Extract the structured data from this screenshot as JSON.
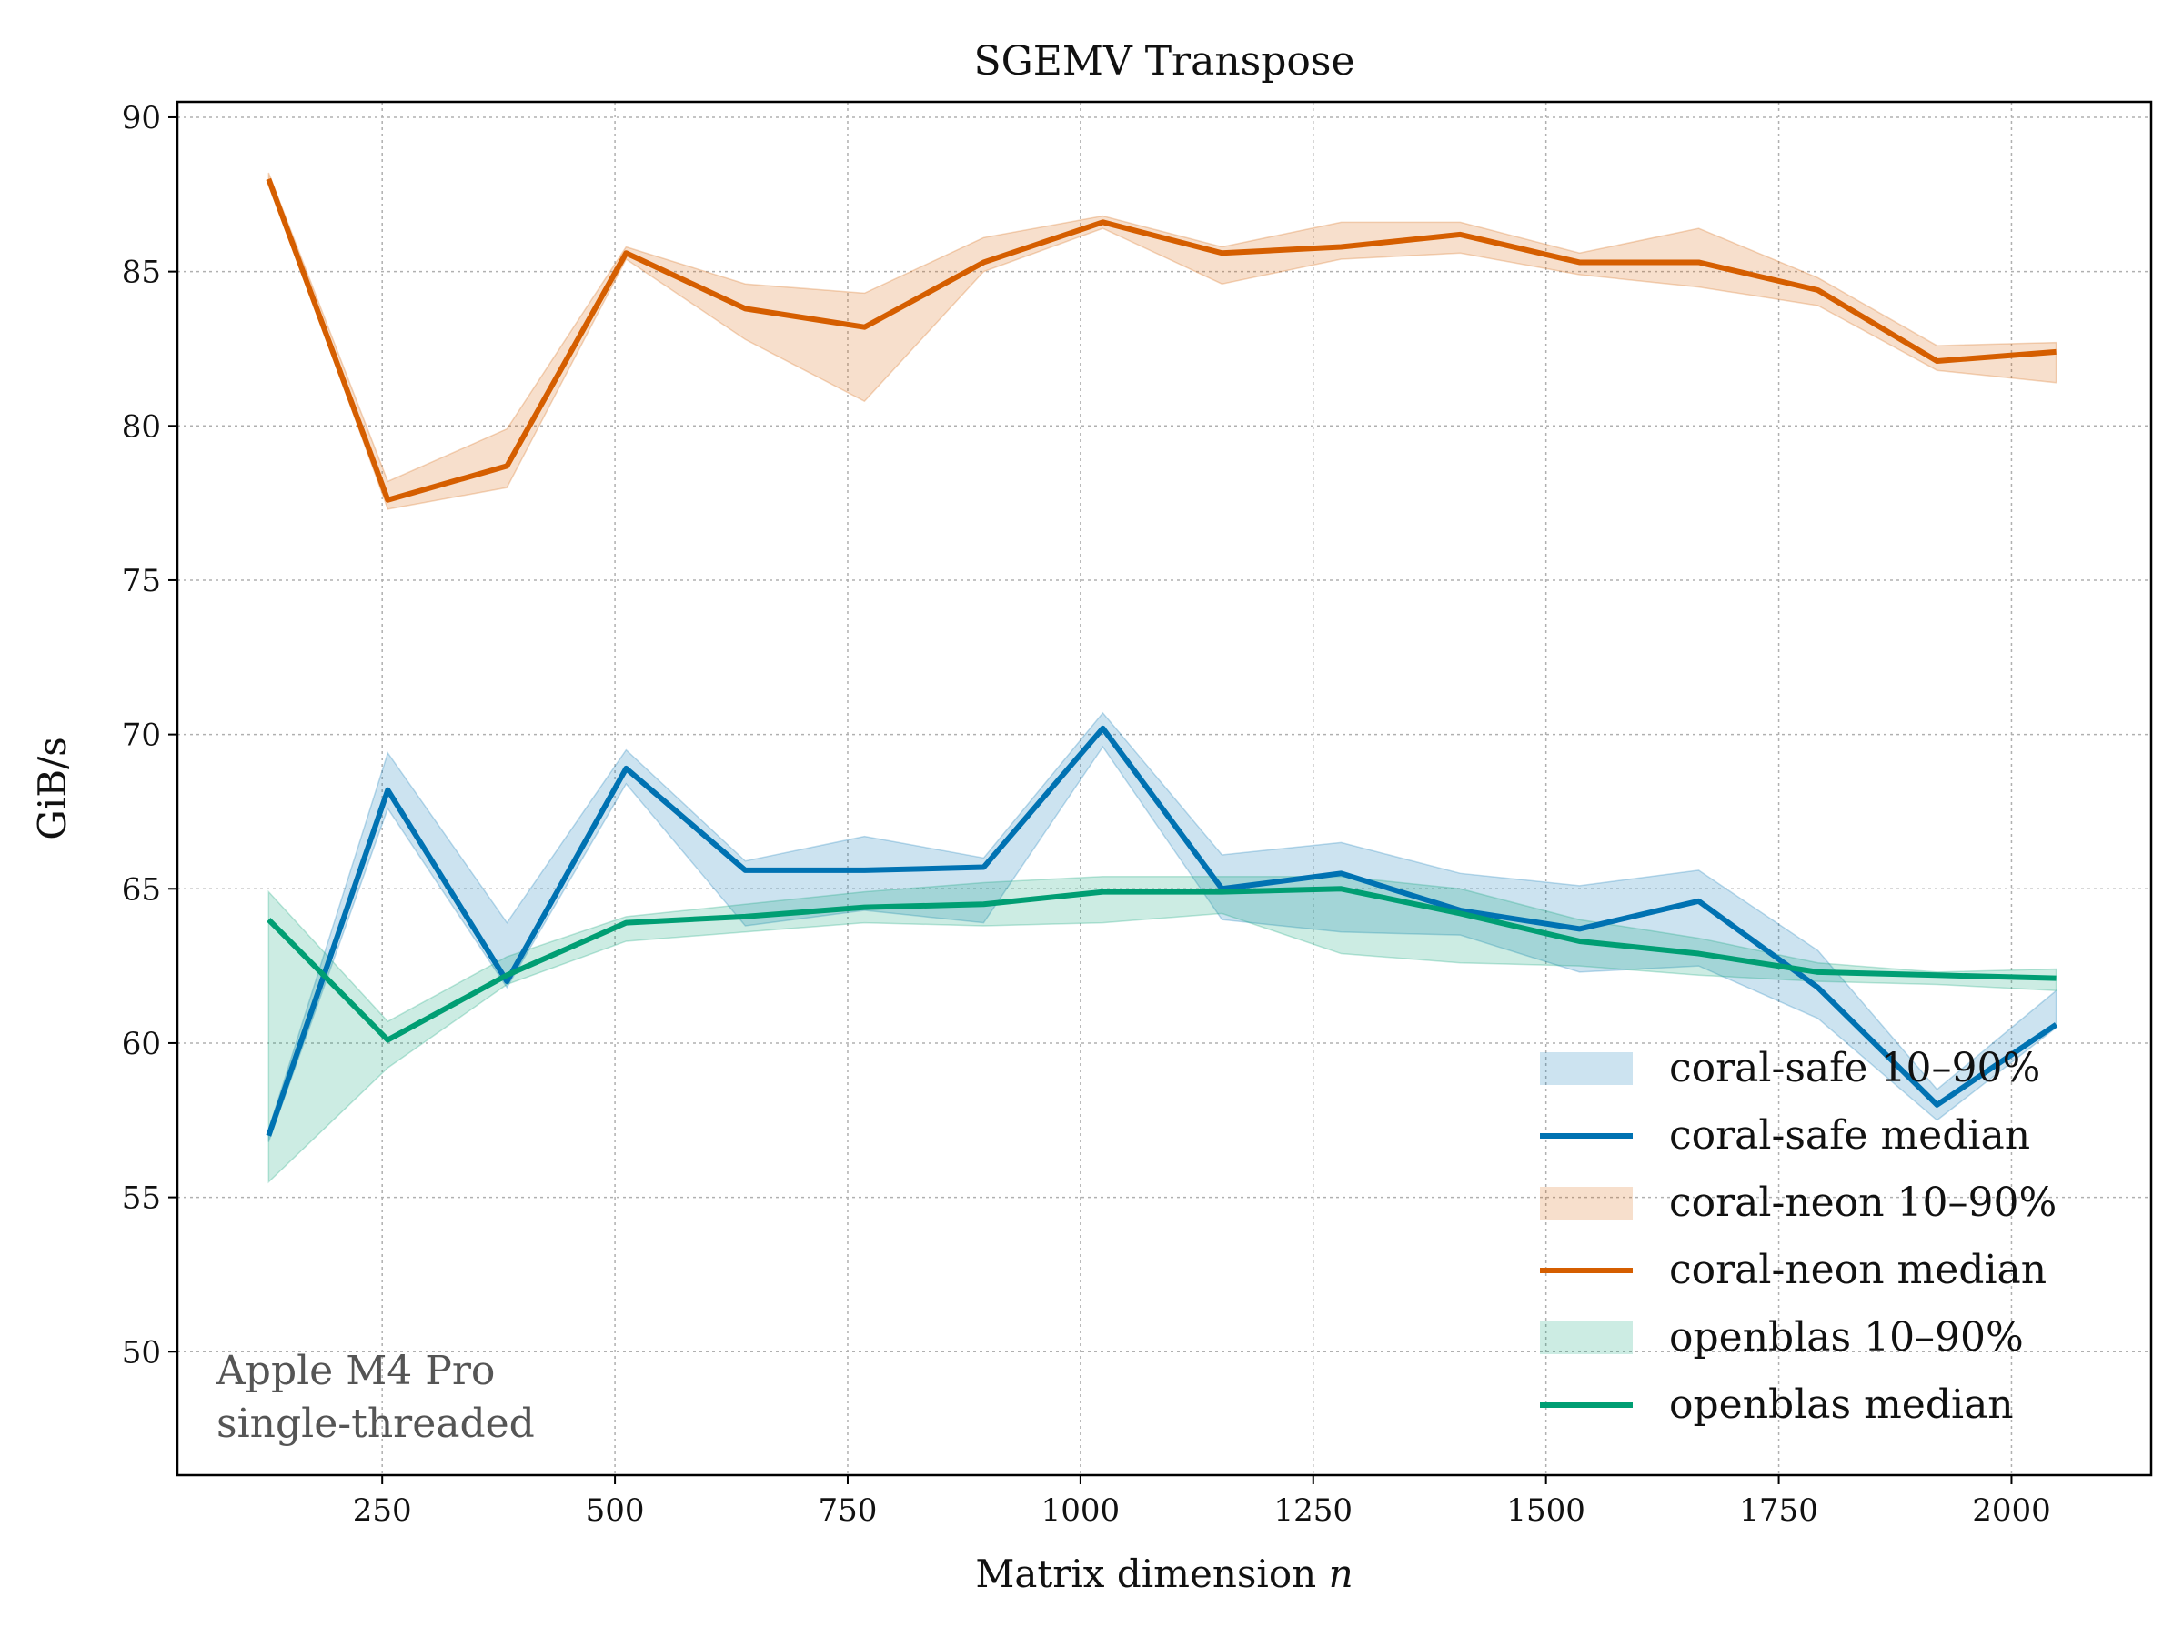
{
  "chart_data": {
    "type": "line",
    "title": "SGEMV Transpose",
    "xlabel": "Matrix dimension",
    "xlabel_var": "n",
    "ylabel": "GiB/s",
    "xlim": [
      30,
      2150
    ],
    "ylim": [
      46,
      90.5
    ],
    "xticks": [
      250,
      500,
      750,
      1000,
      1250,
      1500,
      1750,
      2000
    ],
    "yticks": [
      50,
      55,
      60,
      65,
      70,
      75,
      80,
      85,
      90
    ],
    "grid": true,
    "legend_position": "lower-right",
    "annotation": [
      "Apple M4 Pro",
      "single-threaded"
    ],
    "x": [
      128,
      256,
      384,
      512,
      640,
      768,
      896,
      1024,
      1152,
      1280,
      1408,
      1536,
      1664,
      1792,
      1920,
      2048
    ],
    "series": [
      {
        "name": "coral-safe",
        "color": "#0072b2",
        "band_label": "coral-safe 10–90%",
        "median_label": "coral-safe median",
        "median": [
          57.0,
          68.2,
          62.0,
          68.9,
          65.6,
          65.6,
          65.7,
          70.2,
          65.0,
          65.5,
          64.3,
          63.7,
          64.6,
          61.8,
          58.0,
          60.6
        ],
        "p10": [
          56.8,
          67.6,
          61.8,
          68.4,
          63.8,
          64.3,
          63.9,
          69.6,
          64.0,
          63.6,
          63.5,
          62.3,
          62.5,
          60.8,
          57.5,
          60.5
        ],
        "p90": [
          57.2,
          69.4,
          63.9,
          69.5,
          65.9,
          66.7,
          66.0,
          70.7,
          66.1,
          66.5,
          65.5,
          65.1,
          65.6,
          63.0,
          58.5,
          61.7
        ]
      },
      {
        "name": "coral-neon",
        "color": "#d55e00",
        "band_label": "coral-neon 10–90%",
        "median_label": "coral-neon median",
        "median": [
          88.0,
          77.6,
          78.7,
          85.6,
          83.8,
          83.2,
          85.3,
          86.6,
          85.6,
          85.8,
          86.2,
          85.3,
          85.3,
          84.4,
          82.1,
          82.4
        ],
        "p10": [
          88.0,
          77.3,
          78.0,
          85.4,
          82.8,
          80.8,
          85.0,
          86.4,
          84.6,
          85.4,
          85.6,
          84.9,
          84.5,
          83.9,
          81.8,
          81.4
        ],
        "p90": [
          88.2,
          78.2,
          79.9,
          85.8,
          84.6,
          84.3,
          86.1,
          86.8,
          85.8,
          86.6,
          86.6,
          85.6,
          86.4,
          84.8,
          82.6,
          82.7
        ]
      },
      {
        "name": "openblas",
        "color": "#009e73",
        "band_label": "openblas 10–90%",
        "median_label": "openblas median",
        "median": [
          64.0,
          60.1,
          62.2,
          63.9,
          64.1,
          64.4,
          64.5,
          64.9,
          64.9,
          65.0,
          64.2,
          63.3,
          62.9,
          62.3,
          62.2,
          62.1
        ],
        "p10": [
          55.5,
          59.2,
          61.9,
          63.3,
          63.6,
          63.9,
          63.8,
          63.9,
          64.2,
          62.9,
          62.6,
          62.5,
          62.2,
          62.0,
          61.9,
          61.7
        ],
        "p90": [
          64.9,
          60.7,
          62.8,
          64.1,
          64.5,
          64.9,
          65.2,
          65.4,
          65.4,
          65.4,
          65.0,
          64.0,
          63.4,
          62.6,
          62.3,
          62.4
        ]
      }
    ]
  }
}
